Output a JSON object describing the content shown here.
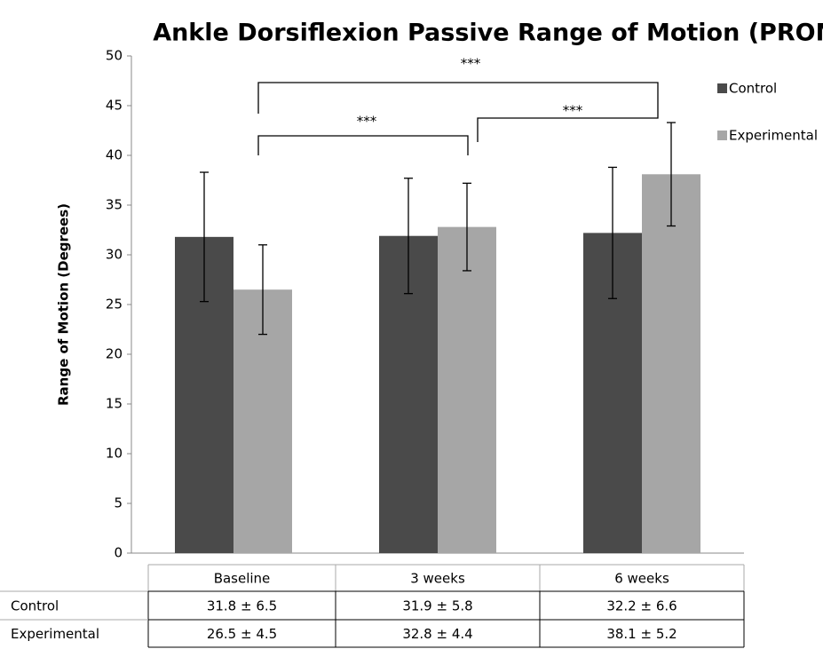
{
  "chart_data": {
    "type": "bar",
    "title": "Ankle Dorsiflexion Passive Range of Motion (PROM)",
    "y_label": "Range of Motion  (Degrees)",
    "categories": [
      "Baseline",
      "3 weeks",
      "6 weeks"
    ],
    "series": [
      {
        "name": "Control",
        "color": "#4a4a4a",
        "values": [
          31.8,
          31.9,
          32.2
        ],
        "errors": [
          6.5,
          5.8,
          6.6
        ],
        "value_labels": [
          "31.8 ± 6.5",
          "31.9 ± 5.8",
          "32.2 ± 6.6"
        ]
      },
      {
        "name": "Experimental",
        "color": "#a6a6a6",
        "values": [
          26.5,
          32.8,
          38.1
        ],
        "errors": [
          4.5,
          4.4,
          5.2
        ],
        "value_labels": [
          "26.5 ± 4.5",
          "32.8 ± 4.4",
          "38.1 ± 5.2"
        ]
      }
    ],
    "ylim": [
      0,
      50
    ],
    "yticks": [
      0,
      5,
      10,
      15,
      20,
      25,
      30,
      35,
      40,
      45,
      50
    ],
    "legend": "top-right",
    "annotations": [
      "***",
      "***",
      "***"
    ]
  }
}
